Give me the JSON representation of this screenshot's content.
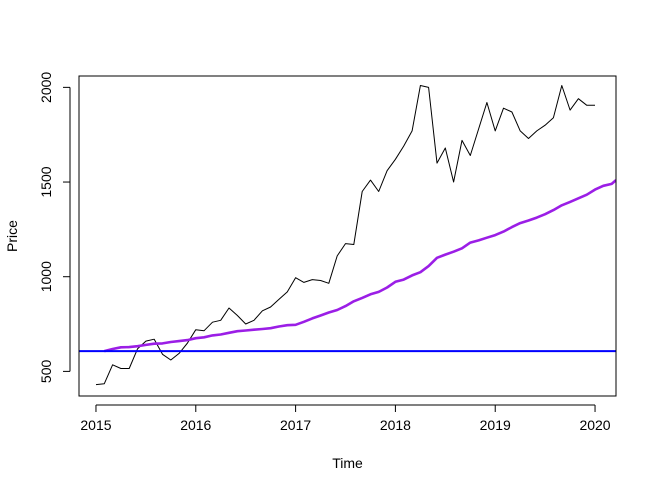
{
  "chart_data": {
    "type": "line",
    "title": "",
    "xlabel": "Time",
    "ylabel": "Price",
    "xlim": [
      2014.83,
      2020.21
    ],
    "ylim": [
      370,
      2060
    ],
    "x_ticks": [
      2015,
      2016,
      2017,
      2018,
      2019,
      2020
    ],
    "y_ticks": [
      500,
      1000,
      1500,
      2000
    ],
    "grid": false,
    "legend": "none",
    "series": [
      {
        "color": "#000000",
        "style": "thin",
        "x": [
          2015.0,
          2015.083,
          2015.167,
          2015.25,
          2015.333,
          2015.417,
          2015.5,
          2015.583,
          2015.667,
          2015.75,
          2015.833,
          2015.917,
          2016.0,
          2016.083,
          2016.167,
          2016.25,
          2016.333,
          2016.417,
          2016.5,
          2016.583,
          2016.667,
          2016.75,
          2016.833,
          2016.917,
          2017.0,
          2017.083,
          2017.167,
          2017.25,
          2017.333,
          2017.417,
          2017.5,
          2017.583,
          2017.667,
          2017.75,
          2017.833,
          2017.917,
          2018.0,
          2018.083,
          2018.167,
          2018.25,
          2018.333,
          2018.417,
          2018.5,
          2018.583,
          2018.667,
          2018.75,
          2018.833,
          2018.917,
          2019.0,
          2019.083,
          2019.167,
          2019.25,
          2019.333,
          2019.417,
          2019.5,
          2019.583,
          2019.667,
          2019.75,
          2019.833,
          2019.917,
          2020.0
        ],
        "values": [
          430,
          435,
          535,
          515,
          515,
          620,
          660,
          670,
          590,
          560,
          595,
          650,
          720,
          715,
          760,
          770,
          835,
          795,
          750,
          770,
          820,
          840,
          880,
          920,
          995,
          970,
          985,
          980,
          965,
          1110,
          1175,
          1170,
          1450,
          1510,
          1450,
          1560,
          1620,
          1690,
          1770,
          2010,
          2000,
          1600,
          1680,
          1500,
          1720,
          1640,
          1780,
          1920,
          1770,
          1890,
          1870,
          1770,
          1730,
          1770,
          1800,
          1840,
          2010,
          1880,
          1940,
          1905,
          1905
        ]
      },
      {
        "color": "#9b1ee6",
        "style": "thick",
        "x": [
          2015.083,
          2015.167,
          2015.25,
          2015.333,
          2015.417,
          2015.5,
          2015.583,
          2015.667,
          2015.75,
          2015.833,
          2015.917,
          2016.0,
          2016.083,
          2016.167,
          2016.25,
          2016.333,
          2016.417,
          2016.5,
          2016.583,
          2016.667,
          2016.75,
          2016.833,
          2016.917,
          2017.0,
          2017.083,
          2017.167,
          2017.25,
          2017.333,
          2017.417,
          2017.5,
          2017.583,
          2017.667,
          2017.75,
          2017.833,
          2017.917,
          2018.0,
          2018.083,
          2018.167,
          2018.25,
          2018.333,
          2018.417,
          2018.5,
          2018.583,
          2018.667,
          2018.75,
          2018.833,
          2018.917,
          2019.0,
          2019.083,
          2019.167,
          2019.25,
          2019.333,
          2019.417,
          2019.5,
          2019.583,
          2019.667,
          2019.75,
          2019.833,
          2019.917,
          2020.0,
          2020.083,
          2020.167,
          2020.21
        ],
        "values": [
          607,
          618,
          627,
          628,
          633,
          640,
          646,
          648,
          655,
          660,
          665,
          675,
          680,
          690,
          695,
          704,
          712,
          716,
          720,
          724,
          728,
          737,
          744,
          746,
          762,
          780,
          795,
          811,
          824,
          845,
          870,
          888,
          907,
          920,
          943,
          973,
          985,
          1007,
          1024,
          1056,
          1100,
          1117,
          1132,
          1150,
          1180,
          1192,
          1206,
          1220,
          1238,
          1262,
          1283,
          1297,
          1312,
          1330,
          1352,
          1377,
          1395,
          1414,
          1433,
          1460,
          1480,
          1490,
          1510
        ]
      },
      {
        "color": "#0000ff",
        "style": "horizontal",
        "values": [
          607
        ]
      }
    ]
  }
}
